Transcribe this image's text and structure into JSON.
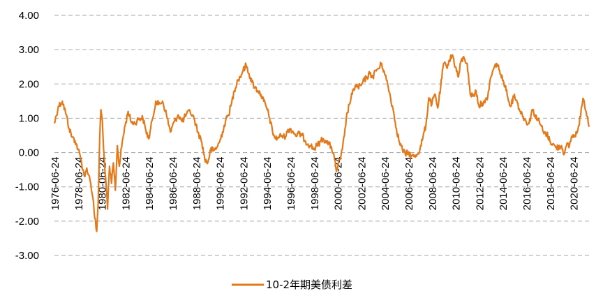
{
  "chart_data": {
    "type": "line",
    "title": "",
    "xlabel": "",
    "ylabel": "",
    "ylim": [
      -3.0,
      4.0
    ],
    "y_ticks": [
      "4.00",
      "3.00",
      "2.00",
      "1.00",
      "0.00",
      "-1.00",
      "-2.00",
      "-3.00"
    ],
    "x_ticks": [
      "1976-06-24",
      "1978-06-24",
      "1980-06-24",
      "1982-06-24",
      "1984-06-24",
      "1986-06-24",
      "1988-06-24",
      "1990-06-24",
      "1992-06-24",
      "1994-06-24",
      "1996-06-24",
      "1998-06-24",
      "2000-06-24",
      "2002-06-24",
      "2004-06-24",
      "2006-06-24",
      "2008-06-24",
      "2010-06-24",
      "2012-06-24",
      "2014-06-24",
      "2016-06-24",
      "2018-06-24",
      "2020-06-24"
    ],
    "x_range": [
      "1976-06-01",
      "2021-09-30"
    ],
    "grid": "horizontal dashed",
    "legend_position": "bottom-center",
    "series": [
      {
        "name": "10-2年期美债利差",
        "color": "#E2791A",
        "points": [
          [
            "1976-06-01",
            0.85
          ],
          [
            "1976-10-01",
            1.35
          ],
          [
            "1977-02-01",
            1.5
          ],
          [
            "1977-06-01",
            1.1
          ],
          [
            "1977-09-01",
            0.7
          ],
          [
            "1977-12-01",
            0.45
          ],
          [
            "1978-03-01",
            0.35
          ],
          [
            "1978-06-01",
            0.1
          ],
          [
            "1978-09-01",
            -0.2
          ],
          [
            "1978-11-01",
            -0.5
          ],
          [
            "1979-01-01",
            -0.7
          ],
          [
            "1979-03-01",
            -0.45
          ],
          [
            "1979-05-01",
            -0.65
          ],
          [
            "1979-07-01",
            -0.9
          ],
          [
            "1979-09-01",
            -1.3
          ],
          [
            "1979-11-01",
            -1.9
          ],
          [
            "1980-01-01",
            -2.3
          ],
          [
            "1980-02-15",
            -1.5
          ],
          [
            "1980-04-01",
            0.4
          ],
          [
            "1980-05-10",
            1.25
          ],
          [
            "1980-06-24",
            0.9
          ],
          [
            "1980-08-01",
            0.1
          ],
          [
            "1980-10-01",
            -0.7
          ],
          [
            "1980-12-01",
            -1.65
          ],
          [
            "1981-02-01",
            -0.4
          ],
          [
            "1981-04-01",
            -0.9
          ],
          [
            "1981-06-01",
            -0.3
          ],
          [
            "1981-08-01",
            -1.1
          ],
          [
            "1981-10-01",
            0.2
          ],
          [
            "1981-12-01",
            -0.4
          ],
          [
            "1982-03-01",
            0.3
          ],
          [
            "1982-06-01",
            0.8
          ],
          [
            "1982-09-01",
            1.2
          ],
          [
            "1982-12-01",
            0.9
          ],
          [
            "1983-04-01",
            0.85
          ],
          [
            "1983-08-01",
            1.0
          ],
          [
            "1983-12-01",
            1.0
          ],
          [
            "1984-03-01",
            0.65
          ],
          [
            "1984-06-01",
            0.4
          ],
          [
            "1984-10-01",
            1.0
          ],
          [
            "1985-01-01",
            1.5
          ],
          [
            "1985-04-01",
            1.4
          ],
          [
            "1985-08-01",
            1.5
          ],
          [
            "1985-12-01",
            1.1
          ],
          [
            "1986-04-01",
            0.6
          ],
          [
            "1986-08-01",
            0.9
          ],
          [
            "1986-12-01",
            1.1
          ],
          [
            "1987-04-01",
            0.9
          ],
          [
            "1987-08-01",
            1.1
          ],
          [
            "1987-12-01",
            1.2
          ],
          [
            "1988-04-01",
            1.0
          ],
          [
            "1988-08-01",
            0.6
          ],
          [
            "1988-12-01",
            0.3
          ],
          [
            "1989-03-01",
            -0.2
          ],
          [
            "1989-06-01",
            -0.3
          ],
          [
            "1989-09-01",
            0.1
          ],
          [
            "1989-12-01",
            0.05
          ],
          [
            "1990-03-01",
            0.15
          ],
          [
            "1990-06-01",
            0.3
          ],
          [
            "1990-09-01",
            0.6
          ],
          [
            "1990-12-01",
            0.9
          ],
          [
            "1991-03-01",
            1.1
          ],
          [
            "1991-06-01",
            1.4
          ],
          [
            "1991-09-01",
            1.8
          ],
          [
            "1991-12-01",
            2.1
          ],
          [
            "1992-03-01",
            2.2
          ],
          [
            "1992-06-01",
            2.4
          ],
          [
            "1992-09-01",
            2.55
          ],
          [
            "1992-12-01",
            2.3
          ],
          [
            "1993-03-01",
            2.05
          ],
          [
            "1993-06-01",
            1.9
          ],
          [
            "1993-09-01",
            1.8
          ],
          [
            "1993-12-01",
            1.7
          ],
          [
            "1994-03-01",
            1.5
          ],
          [
            "1994-06-01",
            1.3
          ],
          [
            "1994-09-01",
            1.0
          ],
          [
            "1994-12-01",
            0.6
          ],
          [
            "1995-03-01",
            0.4
          ],
          [
            "1995-06-01",
            0.45
          ],
          [
            "1995-09-01",
            0.5
          ],
          [
            "1995-12-01",
            0.45
          ],
          [
            "1996-03-01",
            0.6
          ],
          [
            "1996-06-01",
            0.7
          ],
          [
            "1996-09-01",
            0.6
          ],
          [
            "1996-12-01",
            0.5
          ],
          [
            "1997-03-01",
            0.55
          ],
          [
            "1997-06-01",
            0.5
          ],
          [
            "1997-09-01",
            0.35
          ],
          [
            "1997-12-01",
            0.25
          ],
          [
            "1998-03-01",
            0.2
          ],
          [
            "1998-06-01",
            0.1
          ],
          [
            "1998-09-01",
            0.2
          ],
          [
            "1998-12-01",
            0.3
          ],
          [
            "1999-03-01",
            0.4
          ],
          [
            "1999-06-01",
            0.35
          ],
          [
            "1999-09-01",
            0.25
          ],
          [
            "1999-12-01",
            0.15
          ],
          [
            "2000-03-01",
            -0.2
          ],
          [
            "2000-05-01",
            -0.55
          ],
          [
            "2000-07-01",
            -0.3
          ],
          [
            "2000-09-01",
            -0.2
          ],
          [
            "2000-11-01",
            0.1
          ],
          [
            "2001-01-01",
            0.5
          ],
          [
            "2001-03-01",
            1.0
          ],
          [
            "2001-06-01",
            1.4
          ],
          [
            "2001-09-01",
            1.7
          ],
          [
            "2001-12-01",
            1.95
          ],
          [
            "2002-03-01",
            1.9
          ],
          [
            "2002-06-01",
            1.95
          ],
          [
            "2002-09-01",
            2.1
          ],
          [
            "2002-12-01",
            2.2
          ],
          [
            "2003-03-01",
            2.3
          ],
          [
            "2003-06-01",
            2.2
          ],
          [
            "2003-09-01",
            2.4
          ],
          [
            "2003-12-01",
            2.45
          ],
          [
            "2004-03-01",
            2.6
          ],
          [
            "2004-06-01",
            2.3
          ],
          [
            "2004-09-01",
            2.0
          ],
          [
            "2004-12-01",
            1.6
          ],
          [
            "2005-03-01",
            1.2
          ],
          [
            "2005-06-01",
            0.7
          ],
          [
            "2005-09-01",
            0.3
          ],
          [
            "2005-12-01",
            0.1
          ],
          [
            "2006-03-01",
            -0.05
          ],
          [
            "2006-06-01",
            0.0
          ],
          [
            "2006-09-01",
            -0.1
          ],
          [
            "2006-12-01",
            -0.12
          ],
          [
            "2007-03-01",
            -0.05
          ],
          [
            "2007-06-01",
            0.1
          ],
          [
            "2007-09-01",
            0.45
          ],
          [
            "2007-12-01",
            0.8
          ],
          [
            "2008-03-01",
            1.6
          ],
          [
            "2008-06-01",
            1.4
          ],
          [
            "2008-09-01",
            1.7
          ],
          [
            "2008-12-01",
            1.3
          ],
          [
            "2009-03-01",
            1.9
          ],
          [
            "2009-06-01",
            2.6
          ],
          [
            "2009-09-01",
            2.5
          ],
          [
            "2009-12-01",
            2.7
          ],
          [
            "2010-03-01",
            2.85
          ],
          [
            "2010-06-01",
            2.5
          ],
          [
            "2010-09-01",
            2.2
          ],
          [
            "2010-12-01",
            2.7
          ],
          [
            "2011-03-01",
            2.75
          ],
          [
            "2011-06-01",
            2.6
          ],
          [
            "2011-09-01",
            1.7
          ],
          [
            "2011-12-01",
            1.65
          ],
          [
            "2012-03-01",
            1.8
          ],
          [
            "2012-06-01",
            1.35
          ],
          [
            "2012-09-01",
            1.45
          ],
          [
            "2012-12-01",
            1.45
          ],
          [
            "2013-03-01",
            1.65
          ],
          [
            "2013-06-01",
            2.2
          ],
          [
            "2013-09-01",
            2.45
          ],
          [
            "2013-12-01",
            2.6
          ],
          [
            "2014-03-01",
            2.4
          ],
          [
            "2014-06-01",
            2.1
          ],
          [
            "2014-09-01",
            1.95
          ],
          [
            "2014-12-01",
            1.5
          ],
          [
            "2015-03-01",
            1.4
          ],
          [
            "2015-06-01",
            1.7
          ],
          [
            "2015-09-01",
            1.45
          ],
          [
            "2015-12-01",
            1.2
          ],
          [
            "2016-03-01",
            1.05
          ],
          [
            "2016-06-01",
            0.9
          ],
          [
            "2016-09-01",
            0.85
          ],
          [
            "2016-12-01",
            1.25
          ],
          [
            "2017-03-01",
            1.1
          ],
          [
            "2017-06-01",
            0.95
          ],
          [
            "2017-09-01",
            0.8
          ],
          [
            "2017-12-01",
            0.55
          ],
          [
            "2018-03-01",
            0.55
          ],
          [
            "2018-06-01",
            0.35
          ],
          [
            "2018-09-01",
            0.25
          ],
          [
            "2018-12-01",
            0.15
          ],
          [
            "2019-03-01",
            0.15
          ],
          [
            "2019-06-01",
            0.2
          ],
          [
            "2019-08-28",
            -0.04
          ],
          [
            "2019-11-01",
            0.2
          ],
          [
            "2020-02-01",
            0.2
          ],
          [
            "2020-04-01",
            0.45
          ],
          [
            "2020-07-01",
            0.5
          ],
          [
            "2020-10-01",
            0.6
          ],
          [
            "2020-12-01",
            0.8
          ],
          [
            "2021-02-01",
            1.3
          ],
          [
            "2021-03-25",
            1.58
          ],
          [
            "2021-05-01",
            1.5
          ],
          [
            "2021-07-01",
            1.2
          ],
          [
            "2021-08-15",
            1.05
          ],
          [
            "2021-09-30",
            0.75
          ]
        ]
      }
    ]
  }
}
